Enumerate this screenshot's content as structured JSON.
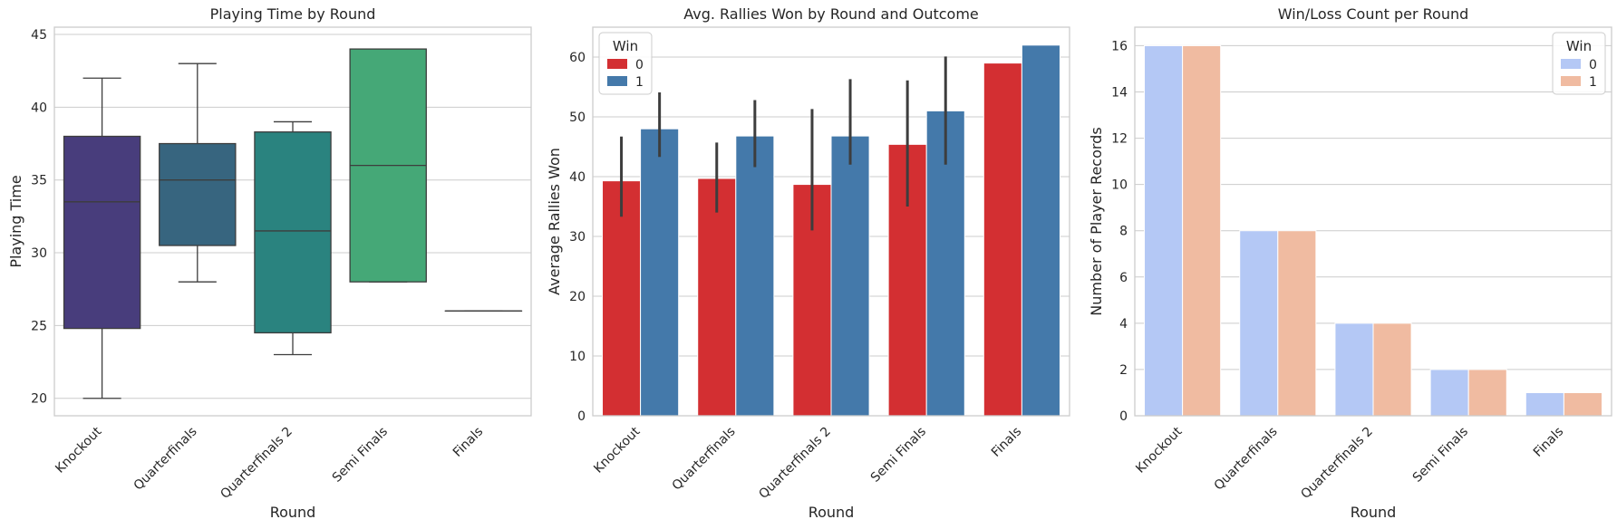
{
  "chart_data": [
    {
      "type": "box",
      "title": "Playing Time by Round",
      "xlabel": "Round",
      "ylabel": "Playing Time",
      "categories": [
        "Knockout",
        "Quarterfinals",
        "Quarterfinals 2",
        "Semi Finals",
        "Finals"
      ],
      "ylim": [
        18.8,
        45.5
      ],
      "yticks": [
        20,
        25,
        30,
        35,
        40,
        45
      ],
      "grid": true,
      "boxes": [
        {
          "category": "Knockout",
          "whisker_low": 20,
          "q1": 24.8,
          "median": 33.5,
          "q3": 38,
          "whisker_high": 42,
          "color": "#483d7c"
        },
        {
          "category": "Quarterfinals",
          "whisker_low": 28,
          "q1": 30.5,
          "median": 35,
          "q3": 37.5,
          "whisker_high": 43,
          "color": "#37657f"
        },
        {
          "category": "Quarterfinals 2",
          "whisker_low": 23,
          "q1": 24.5,
          "median": 31.5,
          "q3": 38.3,
          "whisker_high": 39,
          "color": "#2a837f"
        },
        {
          "category": "Semi Finals",
          "whisker_low": 28,
          "q1": 28,
          "median": 36,
          "q3": 44,
          "whisker_high": 44,
          "color": "#45a877"
        },
        {
          "category": "Finals",
          "whisker_low": 26,
          "q1": 26,
          "median": 26,
          "q3": 26,
          "whisker_high": 26,
          "color": "#9ac454"
        }
      ]
    },
    {
      "type": "bar",
      "title": "Avg. Rallies Won by Round and Outcome",
      "xlabel": "Round",
      "ylabel": "Average Rallies Won",
      "categories": [
        "Knockout",
        "Quarterfinals",
        "Quarterfinals 2",
        "Semi Finals",
        "Finals"
      ],
      "ylim": [
        0,
        65
      ],
      "yticks": [
        0,
        10,
        20,
        30,
        40,
        50,
        60
      ],
      "grid": true,
      "legend": {
        "title": "Win",
        "position": "top-left"
      },
      "series": [
        {
          "name": "0",
          "color": "#d32f32",
          "values": [
            39.3,
            39.7,
            38.7,
            45.4,
            59
          ],
          "err_low": [
            33.3,
            34,
            31,
            35,
            59
          ],
          "err_high": [
            46.7,
            45.7,
            51.3,
            56.1,
            59
          ]
        },
        {
          "name": "1",
          "color": "#4479aa",
          "values": [
            48,
            46.8,
            46.8,
            51,
            62
          ],
          "err_low": [
            43.3,
            41.6,
            42,
            42,
            62
          ],
          "err_high": [
            54.1,
            52.8,
            56.3,
            60.1,
            62
          ]
        }
      ]
    },
    {
      "type": "bar",
      "title": "Win/Loss Count per Round",
      "xlabel": "Round",
      "ylabel": "Number of Player Records",
      "categories": [
        "Knockout",
        "Quarterfinals",
        "Quarterfinals 2",
        "Semi Finals",
        "Finals"
      ],
      "ylim": [
        0,
        16.8
      ],
      "yticks": [
        0,
        2,
        4,
        6,
        8,
        10,
        12,
        14,
        16
      ],
      "grid": true,
      "legend": {
        "title": "Win",
        "position": "top-right"
      },
      "series": [
        {
          "name": "0",
          "color": "#b4c8f5",
          "values": [
            16,
            8,
            4,
            2,
            1
          ]
        },
        {
          "name": "1",
          "color": "#f0bba1",
          "values": [
            16,
            8,
            4,
            2,
            1
          ]
        }
      ]
    }
  ]
}
